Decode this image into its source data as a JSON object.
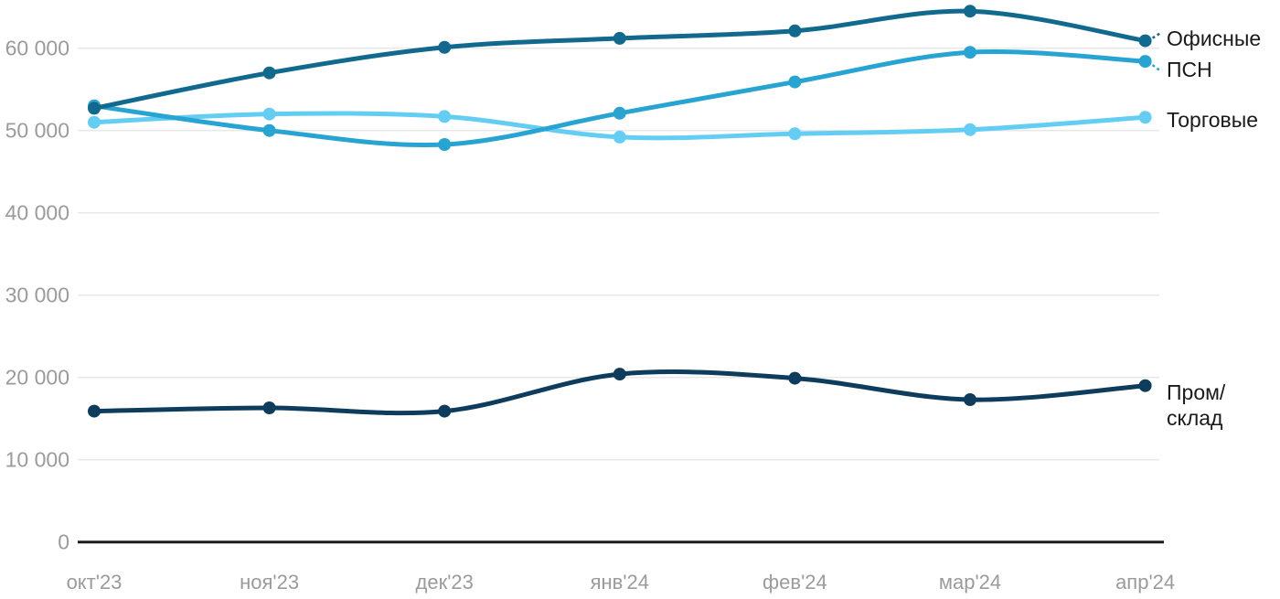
{
  "chart_data": {
    "type": "line",
    "title": "",
    "categories": [
      "окт'23",
      "ноя'23",
      "дек'23",
      "янв'24",
      "фев'24",
      "мар'24",
      "апр'24"
    ],
    "series": [
      {
        "name": "Офисные",
        "color": "#116a8e",
        "values": [
          52700,
          57000,
          60100,
          61200,
          62100,
          64500,
          60900
        ],
        "label_lines": [
          "Офисные"
        ],
        "label_baselines": [
          50
        ],
        "leader": "up"
      },
      {
        "name": "ПСН",
        "color": "#28a4d2",
        "values": [
          53000,
          50000,
          48300,
          52100,
          55900,
          59500,
          58400
        ],
        "label_lines": [
          "ПСН"
        ],
        "label_baselines": [
          84
        ],
        "leader": "down"
      },
      {
        "name": "Торговые",
        "color": "#64cdf4",
        "values": [
          51000,
          52000,
          51700,
          49200,
          49600,
          50100,
          51600
        ],
        "label_lines": [
          "Торговые"
        ],
        "label_baselines": [
          139
        ],
        "leader": "none"
      },
      {
        "name": "Пром/склад",
        "color": "#0d3c5d",
        "values": [
          15900,
          16300,
          15900,
          20400,
          19900,
          17300,
          19000
        ],
        "label_lines": [
          "Пром/",
          "склад"
        ],
        "label_baselines": [
          437,
          465
        ],
        "leader": "none"
      }
    ],
    "draw_order": [
      2,
      1,
      0,
      3
    ],
    "ylim": [
      0,
      65000
    ],
    "yticks": [
      0,
      10000,
      20000,
      30000,
      40000,
      50000,
      60000
    ],
    "ytick_labels": [
      "0",
      "10 000",
      "20 000",
      "30 000",
      "40 000",
      "50 000",
      "60 000"
    ],
    "grid": "horizontal-only",
    "legend_position": "right-of-last-point"
  },
  "style": {
    "background": "#ffffff",
    "grid_color": "#e8e8e8",
    "axis_color": "#1c1c1c",
    "tick_text_color": "#9b9b9b",
    "series_label_color": "#1a1a1a"
  }
}
